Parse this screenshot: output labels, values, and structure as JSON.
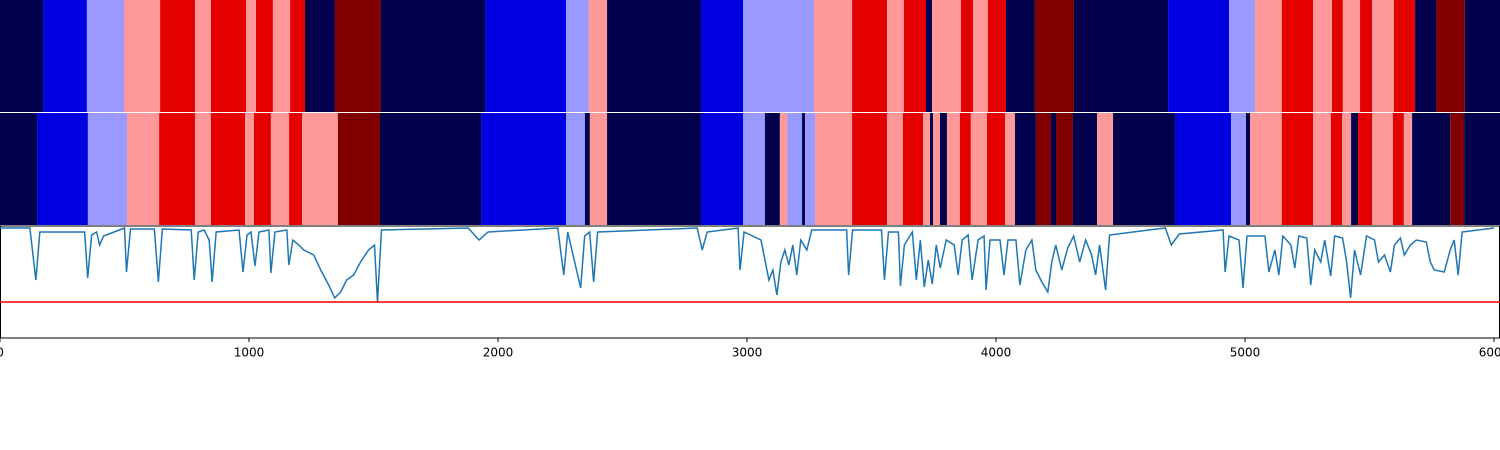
{
  "chart_data": {
    "type": "segmentation",
    "xlim": [
      0,
      6024
    ],
    "xticks": [
      0,
      1000,
      2000,
      3000,
      4000,
      5000,
      6000
    ],
    "rows": [
      {
        "breaks": [
          0,
          173,
          349,
          498,
          643,
          783,
          847,
          988,
          1028,
          1096,
          1165,
          1225,
          1345,
          1530,
          1948,
          2273,
          2365,
          2438,
          2815,
          2984,
          3269,
          3422,
          3562,
          3630,
          3719,
          3743,
          3859,
          3908,
          3968,
          4040,
          4156,
          4313,
          4691,
          4936,
          5040,
          5148,
          5273,
          5349,
          5393,
          5462,
          5510,
          5598,
          5683,
          5767,
          5883,
          6024
        ],
        "colors": [
          "#00004c",
          "#0000e0",
          "#9999ff",
          "#ff9999",
          "#e50000",
          "#ff9999",
          "#e50000",
          "#ff9999",
          "#e50000",
          "#ff9999",
          "#e50000",
          "#00004c",
          "#800000",
          "#00004c",
          "#0000e0",
          "#9999ff",
          "#ff9999",
          "#00004c",
          "#0000e0",
          "#9999ff",
          "#ff9999",
          "#e50000",
          "#ff9999",
          "#e50000",
          "#00004c",
          "#ff9999",
          "#e50000",
          "#ff9999",
          "#e50000",
          "#00004c",
          "#800000",
          "#00004c",
          "#0000e0",
          "#9999ff",
          "#ff9999",
          "#e50000",
          "#ff9999",
          "#e50000",
          "#ff9999",
          "#e50000",
          "#ff9999",
          "#e50000",
          "#00004c",
          "#800000",
          "#00004c"
        ]
      },
      {
        "breaks": [
          0,
          149,
          353,
          510,
          639,
          783,
          847,
          984,
          1020,
          1088,
          1161,
          1213,
          1357,
          1526,
          1932,
          2273,
          2349,
          2369,
          2438,
          2815,
          2984,
          3072,
          3132,
          3161,
          3221,
          3233,
          3273,
          3422,
          3562,
          3626,
          3707,
          3735,
          3747,
          3775,
          3803,
          3855,
          3899,
          3964,
          4036,
          4076,
          4160,
          4221,
          4241,
          4309,
          4406,
          4470,
          4719,
          4944,
          5004,
          5020,
          5148,
          5273,
          5345,
          5390,
          5426,
          5454,
          5510,
          5594,
          5638,
          5671,
          5824,
          5880,
          6024
        ],
        "colors": [
          "#00004c",
          "#0000e0",
          "#9999ff",
          "#ff9999",
          "#e50000",
          "#ff9999",
          "#e50000",
          "#ff9999",
          "#e50000",
          "#ff9999",
          "#e50000",
          "#ff9999",
          "#800000",
          "#00004c",
          "#0000e0",
          "#9999ff",
          "#00004c",
          "#ff9999",
          "#00004c",
          "#0000e0",
          "#9999ff",
          "#00004c",
          "#ff9999",
          "#9999ff",
          "#00004c",
          "#9999ff",
          "#ff9999",
          "#e50000",
          "#ff9999",
          "#e50000",
          "#ff9999",
          "#00004c",
          "#ff9999",
          "#00004c",
          "#ff9999",
          "#e50000",
          "#ff9999",
          "#e50000",
          "#ff9999",
          "#00004c",
          "#800000",
          "#00004c",
          "#800000",
          "#00004c",
          "#ff9999",
          "#00004c",
          "#0000e0",
          "#9999ff",
          "#00004c",
          "#ff9999",
          "#e50000",
          "#ff9999",
          "#e50000",
          "#ff9999",
          "#00004c",
          "#e50000",
          "#ff9999",
          "#e50000",
          "#ff9999",
          "#00004c",
          "#800000",
          "#00004c"
        ]
      }
    ],
    "ylim": [
      0,
      112
    ],
    "signal": {
      "color": "#1f77b4",
      "x": [
        0,
        120,
        144,
        160,
        340,
        352,
        368,
        388,
        400,
        416,
        500,
        508,
        524,
        620,
        636,
        652,
        768,
        780,
        796,
        820,
        840,
        852,
        868,
        960,
        976,
        992,
        1008,
        1024,
        1040,
        1080,
        1088,
        1104,
        1152,
        1160,
        1176,
        1200,
        1220,
        1260,
        1288,
        1320,
        1344,
        1368,
        1392,
        1420,
        1448,
        1480,
        1504,
        1516,
        1532,
        1880,
        1924,
        1960,
        2240,
        2264,
        2280,
        2332,
        2348,
        2368,
        2384,
        2400,
        2800,
        2820,
        2840,
        2964,
        2972,
        2988,
        3056,
        3072,
        3088,
        3104,
        3120,
        3136,
        3152,
        3168,
        3184,
        3200,
        3216,
        3240,
        3260,
        3400,
        3408,
        3424,
        3540,
        3552,
        3568,
        3608,
        3616,
        3632,
        3664,
        3680,
        3696,
        3712,
        3728,
        3744,
        3760,
        3776,
        3800,
        3832,
        3848,
        3864,
        3888,
        3904,
        3928,
        3952,
        3960,
        3976,
        4016,
        4032,
        4048,
        4080,
        4096,
        4120,
        4144,
        4160,
        4184,
        4208,
        4224,
        4240,
        4264,
        4288,
        4312,
        4336,
        4360,
        4384,
        4400,
        4416,
        4440,
        4456,
        4680,
        4704,
        4736,
        4912,
        4920,
        4936,
        4976,
        4992,
        5008,
        5080,
        5096,
        5120,
        5136,
        5152,
        5184,
        5200,
        5216,
        5248,
        5264,
        5280,
        5304,
        5320,
        5344,
        5360,
        5392,
        5408,
        5424,
        5440,
        5464,
        5488,
        5520,
        5536,
        5560,
        5584,
        5600,
        5624,
        5640,
        5664,
        5688,
        5728,
        5744,
        5760,
        5800,
        5824,
        5840,
        5856,
        5872,
        6000
      ],
      "values": [
        110,
        110,
        58,
        106,
        106,
        60,
        103,
        106,
        93,
        102,
        110,
        66,
        109,
        109,
        56,
        109,
        108,
        58,
        106,
        108,
        98,
        56,
        106,
        108,
        66,
        103,
        106,
        72,
        106,
        108,
        65,
        106,
        108,
        73,
        98,
        93,
        88,
        83,
        68,
        53,
        40,
        46,
        58,
        63,
        76,
        88,
        93,
        36,
        108,
        110,
        98,
        106,
        110,
        63,
        106,
        50,
        102,
        106,
        56,
        106,
        110,
        88,
        106,
        110,
        68,
        106,
        98,
        78,
        58,
        68,
        43,
        76,
        88,
        73,
        93,
        63,
        98,
        88,
        108,
        108,
        63,
        108,
        108,
        58,
        106,
        106,
        52,
        93,
        106,
        58,
        98,
        51,
        78,
        54,
        93,
        70,
        98,
        93,
        63,
        98,
        103,
        58,
        98,
        102,
        48,
        98,
        98,
        63,
        98,
        98,
        53,
        88,
        98,
        68,
        56,
        46,
        76,
        93,
        68,
        90,
        102,
        76,
        98,
        83,
        63,
        93,
        48,
        103,
        110,
        93,
        104,
        108,
        66,
        102,
        98,
        50,
        102,
        102,
        66,
        88,
        63,
        102,
        93,
        70,
        102,
        100,
        53,
        88,
        76,
        98,
        62,
        102,
        100,
        76,
        40,
        88,
        63,
        102,
        98,
        76,
        83,
        66,
        93,
        100,
        83,
        93,
        98,
        96,
        76,
        68,
        66,
        88,
        98,
        63,
        106,
        110
      ]
    },
    "threshold": {
      "value": 36,
      "color": "#ff0000"
    }
  }
}
